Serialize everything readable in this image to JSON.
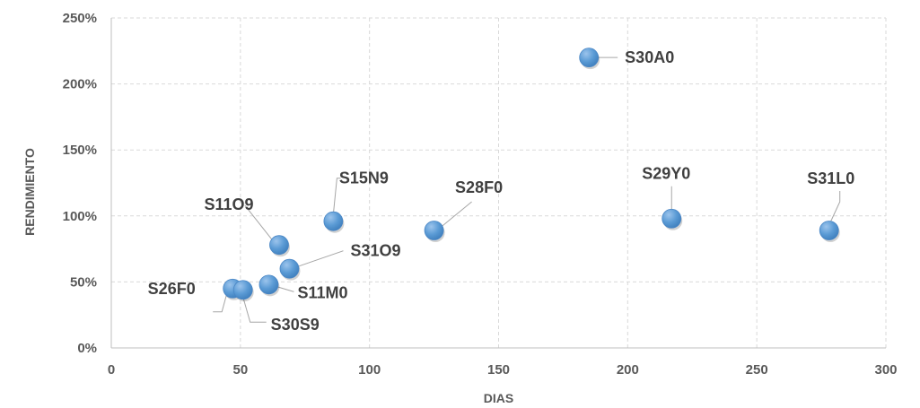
{
  "chart_data": {
    "type": "scatter",
    "title": "",
    "xlabel": "DIAS",
    "ylabel": "RENDIMIENTO",
    "xlim": [
      0,
      300
    ],
    "ylim": [
      0,
      2.5
    ],
    "x_ticks": [
      "0",
      "50",
      "100",
      "150",
      "200",
      "250",
      "300"
    ],
    "y_ticks": [
      "0%",
      "50%",
      "100%",
      "150%",
      "200%",
      "250%"
    ],
    "grid": true,
    "marker_color": "#5b9bd5",
    "points": [
      {
        "label": "S30A0",
        "x": 185,
        "y": 2.2
      },
      {
        "label": "S29Y0",
        "x": 217,
        "y": 0.98
      },
      {
        "label": "S31L0",
        "x": 278,
        "y": 0.89
      },
      {
        "label": "S28F0",
        "x": 125,
        "y": 0.89
      },
      {
        "label": "S15N9",
        "x": 86,
        "y": 0.96
      },
      {
        "label": "S11O9",
        "x": 65,
        "y": 0.78
      },
      {
        "label": "S31O9",
        "x": 69,
        "y": 0.6
      },
      {
        "label": "S11M0",
        "x": 61,
        "y": 0.48
      },
      {
        "label": "S26F0",
        "x": 47,
        "y": 0.45
      },
      {
        "label": "S30S9",
        "x": 51,
        "y": 0.44
      }
    ]
  }
}
